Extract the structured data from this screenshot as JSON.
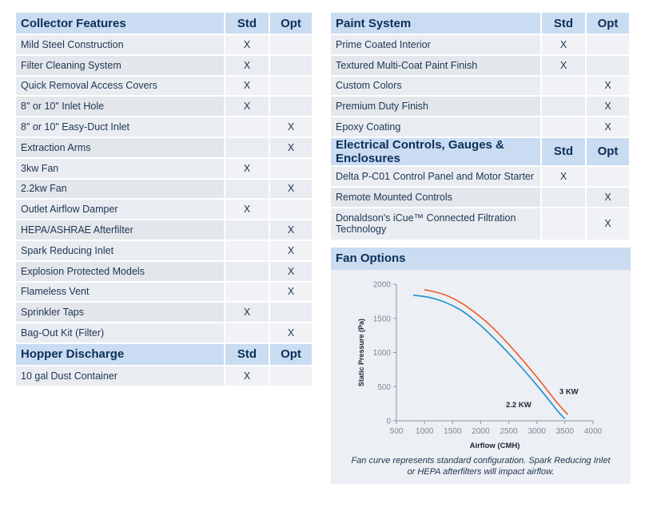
{
  "collector": {
    "header": {
      "title": "Collector Features",
      "std": "Std",
      "opt": "Opt"
    },
    "rows": [
      {
        "name": "Mild Steel Construction",
        "std": "X",
        "opt": ""
      },
      {
        "name": "Filter Cleaning System",
        "std": "X",
        "opt": ""
      },
      {
        "name": "Quick Removal Access Covers",
        "std": "X",
        "opt": ""
      },
      {
        "name": "8\" or 10\" Inlet Hole",
        "std": "X",
        "opt": ""
      },
      {
        "name": "8\" or 10\" Easy-Duct Inlet",
        "std": "",
        "opt": "X"
      },
      {
        "name": "Extraction Arms",
        "std": "",
        "opt": "X"
      },
      {
        "name": "3kw Fan",
        "std": "X",
        "opt": ""
      },
      {
        "name": "2.2kw Fan",
        "std": "",
        "opt": "X"
      },
      {
        "name": "Outlet Airflow Damper",
        "std": "X",
        "opt": ""
      },
      {
        "name": "HEPA/ASHRAE Afterfilter",
        "std": "",
        "opt": "X"
      },
      {
        "name": "Spark Reducing Inlet",
        "std": "",
        "opt": "X"
      },
      {
        "name": "Explosion Protected Models",
        "std": "",
        "opt": "X"
      },
      {
        "name": "Flameless Vent",
        "std": "",
        "opt": "X"
      },
      {
        "name": "Sprinkler Taps",
        "std": "X",
        "opt": ""
      },
      {
        "name": "Bag-Out Kit (Filter)",
        "std": "",
        "opt": "X"
      }
    ]
  },
  "hopper": {
    "header": {
      "title": "Hopper Discharge",
      "std": "Std",
      "opt": "Opt"
    },
    "rows": [
      {
        "name": "10 gal Dust Container",
        "std": "X",
        "opt": ""
      }
    ]
  },
  "paint": {
    "header": {
      "title": "Paint System",
      "std": "Std",
      "opt": "Opt"
    },
    "rows": [
      {
        "name": "Prime Coated Interior",
        "std": "X",
        "opt": ""
      },
      {
        "name": "Textured Multi-Coat Paint Finish",
        "std": "X",
        "opt": ""
      },
      {
        "name": "Custom Colors",
        "std": "",
        "opt": "X"
      },
      {
        "name": "Premium Duty Finish",
        "std": "",
        "opt": "X"
      },
      {
        "name": "Epoxy Coating",
        "std": "",
        "opt": "X"
      }
    ]
  },
  "electrical": {
    "header": {
      "title": "Electrical Controls, Gauges & Enclosures",
      "std": "Std",
      "opt": "Opt"
    },
    "rows": [
      {
        "name": "Delta P-C01 Control Panel and Motor Starter",
        "std": "X",
        "opt": ""
      },
      {
        "name": "Remote Mounted Controls",
        "std": "",
        "opt": "X"
      },
      {
        "name": "Donaldson's iCue™ Connected Filtration Technology",
        "std": "",
        "opt": "X"
      }
    ]
  },
  "fan": {
    "title": "Fan Options",
    "caption_line1": "Fan curve represents standard configuration. Spark Reducing Inlet",
    "caption_line2": "or HEPA afterfilters will impact airflow."
  },
  "chart_data": {
    "type": "line",
    "xlabel": "Airflow (CMH)",
    "ylabel": "Static Pressure (Pa)",
    "xlim": [
      500,
      4000
    ],
    "ylim": [
      0,
      2000
    ],
    "xticks": [
      "500",
      "1000",
      "1500",
      "2000",
      "2500",
      "3000",
      "3500",
      "4000"
    ],
    "yticks": [
      "0",
      "500",
      "1000",
      "1500",
      "2000"
    ],
    "series": [
      {
        "name": "2.2 KW",
        "color": "#1d8fd0",
        "x": [
          800,
          1100,
          1400,
          1700,
          2000,
          2300,
          2600,
          2900,
          3200,
          3400,
          3500
        ],
        "y": [
          1840,
          1810,
          1730,
          1600,
          1400,
          1160,
          900,
          620,
          320,
          110,
          30
        ]
      },
      {
        "name": "3 KW",
        "color": "#ef5a2a",
        "x": [
          1000,
          1300,
          1600,
          1900,
          2200,
          2500,
          2800,
          3100,
          3350,
          3550
        ],
        "y": [
          1920,
          1870,
          1760,
          1590,
          1380,
          1120,
          840,
          540,
          270,
          90
        ]
      }
    ]
  }
}
